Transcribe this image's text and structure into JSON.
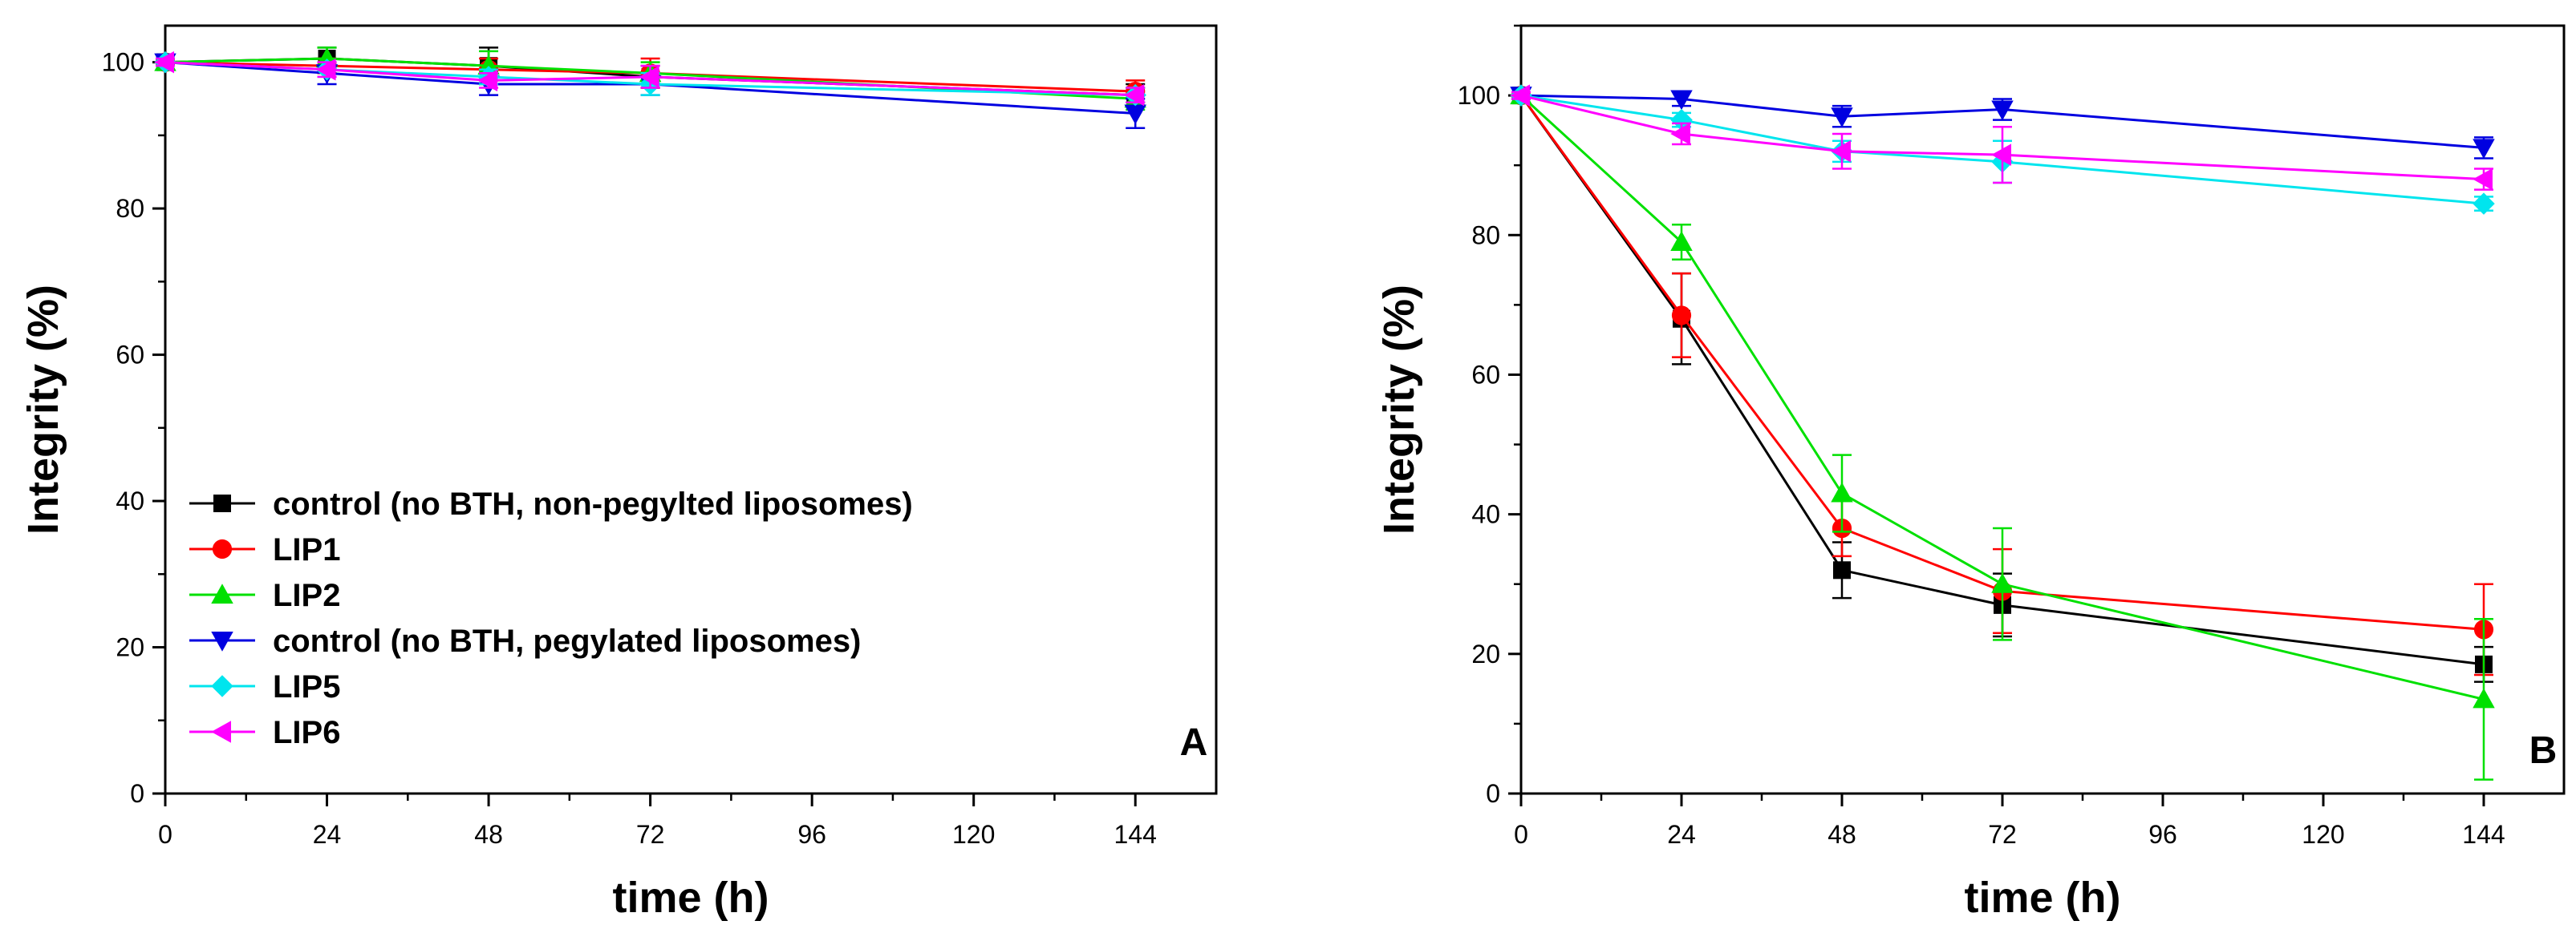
{
  "chart_data": [
    {
      "type": "line",
      "panel_label": "A",
      "xlabel": "time (h)",
      "ylabel": "Integrity (%)",
      "xlim": [
        0,
        156
      ],
      "ylim": [
        0,
        105
      ],
      "xticks": [
        0,
        24,
        48,
        72,
        96,
        120,
        144
      ],
      "xtick_labels": [
        "0",
        "24",
        "48",
        "72",
        "96",
        "120",
        "144"
      ],
      "yticks": [
        0,
        20,
        40,
        60,
        80,
        100
      ],
      "ytick_labels": [
        "0",
        "20",
        "40",
        "60",
        "80",
        "100"
      ],
      "legend_position": "lower-left",
      "x": [
        0,
        24,
        48,
        72,
        144
      ],
      "series": [
        {
          "name": "control (no BTH, non-pegylted liposomes)",
          "color": "#000000",
          "marker": "square",
          "values": [
            100,
            100.5,
            99.5,
            98,
            95.5
          ],
          "errors": [
            0.5,
            1.5,
            2.5,
            1.5,
            1.5
          ]
        },
        {
          "name": "LIP1",
          "color": "#ff0000",
          "marker": "circle",
          "values": [
            100,
            99.5,
            99,
            98.5,
            96
          ],
          "errors": [
            0.5,
            1,
            1.5,
            2,
            1.5
          ]
        },
        {
          "name": "LIP2",
          "color": "#00e000",
          "marker": "triangle-up",
          "values": [
            100,
            100.5,
            99.5,
            98.5,
            95
          ],
          "errors": [
            0.5,
            1.5,
            2,
            1.5,
            1.5
          ]
        },
        {
          "name": "control (no BTH, pegylated liposomes)",
          "color": "#0000e0",
          "marker": "triangle-down",
          "values": [
            100,
            98.5,
            97,
            97,
            93
          ],
          "errors": [
            0.5,
            1.5,
            1.5,
            1.5,
            2
          ]
        },
        {
          "name": "LIP5",
          "color": "#00e5ee",
          "marker": "diamond",
          "values": [
            100,
            99,
            98,
            97,
            95.5
          ],
          "errors": [
            0.5,
            1,
            1,
            1.5,
            1
          ]
        },
        {
          "name": "LIP6",
          "color": "#ff00ff",
          "marker": "triangle-left",
          "values": [
            100,
            99,
            97.5,
            98,
            95.5
          ],
          "errors": [
            0.5,
            1,
            1,
            1.5,
            1
          ]
        }
      ]
    },
    {
      "type": "line",
      "panel_label": "B",
      "xlabel": "time (h)",
      "ylabel": "Integrity (%)",
      "xlim": [
        0,
        156
      ],
      "ylim": [
        0,
        110
      ],
      "xticks": [
        0,
        24,
        48,
        72,
        96,
        120,
        144
      ],
      "xtick_labels": [
        "0",
        "24",
        "48",
        "72",
        "96",
        "120",
        "144"
      ],
      "yticks": [
        0,
        20,
        40,
        60,
        80,
        100
      ],
      "ytick_labels": [
        "0",
        "20",
        "40",
        "60",
        "80",
        "100"
      ],
      "x": [
        0,
        24,
        48,
        72,
        144
      ],
      "series": [
        {
          "name": "control (no BTH, non-pegylted liposomes)",
          "color": "#000000",
          "marker": "square",
          "values": [
            100,
            68,
            32,
            27,
            18.5
          ],
          "errors": [
            0.5,
            6.5,
            4,
            4.5,
            2.5
          ]
        },
        {
          "name": "LIP1",
          "color": "#ff0000",
          "marker": "circle",
          "values": [
            100,
            68.5,
            38,
            29,
            23.5
          ],
          "errors": [
            0.5,
            6,
            4,
            6,
            6.5
          ]
        },
        {
          "name": "LIP2",
          "color": "#00e000",
          "marker": "triangle-up",
          "values": [
            100,
            79,
            43,
            30,
            13.5
          ],
          "errors": [
            0.5,
            2.5,
            5.5,
            8,
            11.5
          ]
        },
        {
          "name": "control (no BTH, pegylated liposomes)",
          "color": "#0000e0",
          "marker": "triangle-down",
          "values": [
            100,
            99.5,
            97,
            98,
            92.5
          ],
          "errors": [
            0.5,
            1,
            1.5,
            1.5,
            1.5
          ]
        },
        {
          "name": "LIP5",
          "color": "#00e5ee",
          "marker": "diamond",
          "values": [
            100,
            96.5,
            92,
            90.5,
            84.5
          ],
          "errors": [
            0.5,
            1,
            1.5,
            3,
            1
          ]
        },
        {
          "name": "LIP6",
          "color": "#ff00ff",
          "marker": "triangle-left",
          "values": [
            100,
            94.5,
            92,
            91.5,
            88
          ],
          "errors": [
            0.5,
            1.5,
            2.5,
            4,
            1.5
          ]
        }
      ]
    }
  ]
}
